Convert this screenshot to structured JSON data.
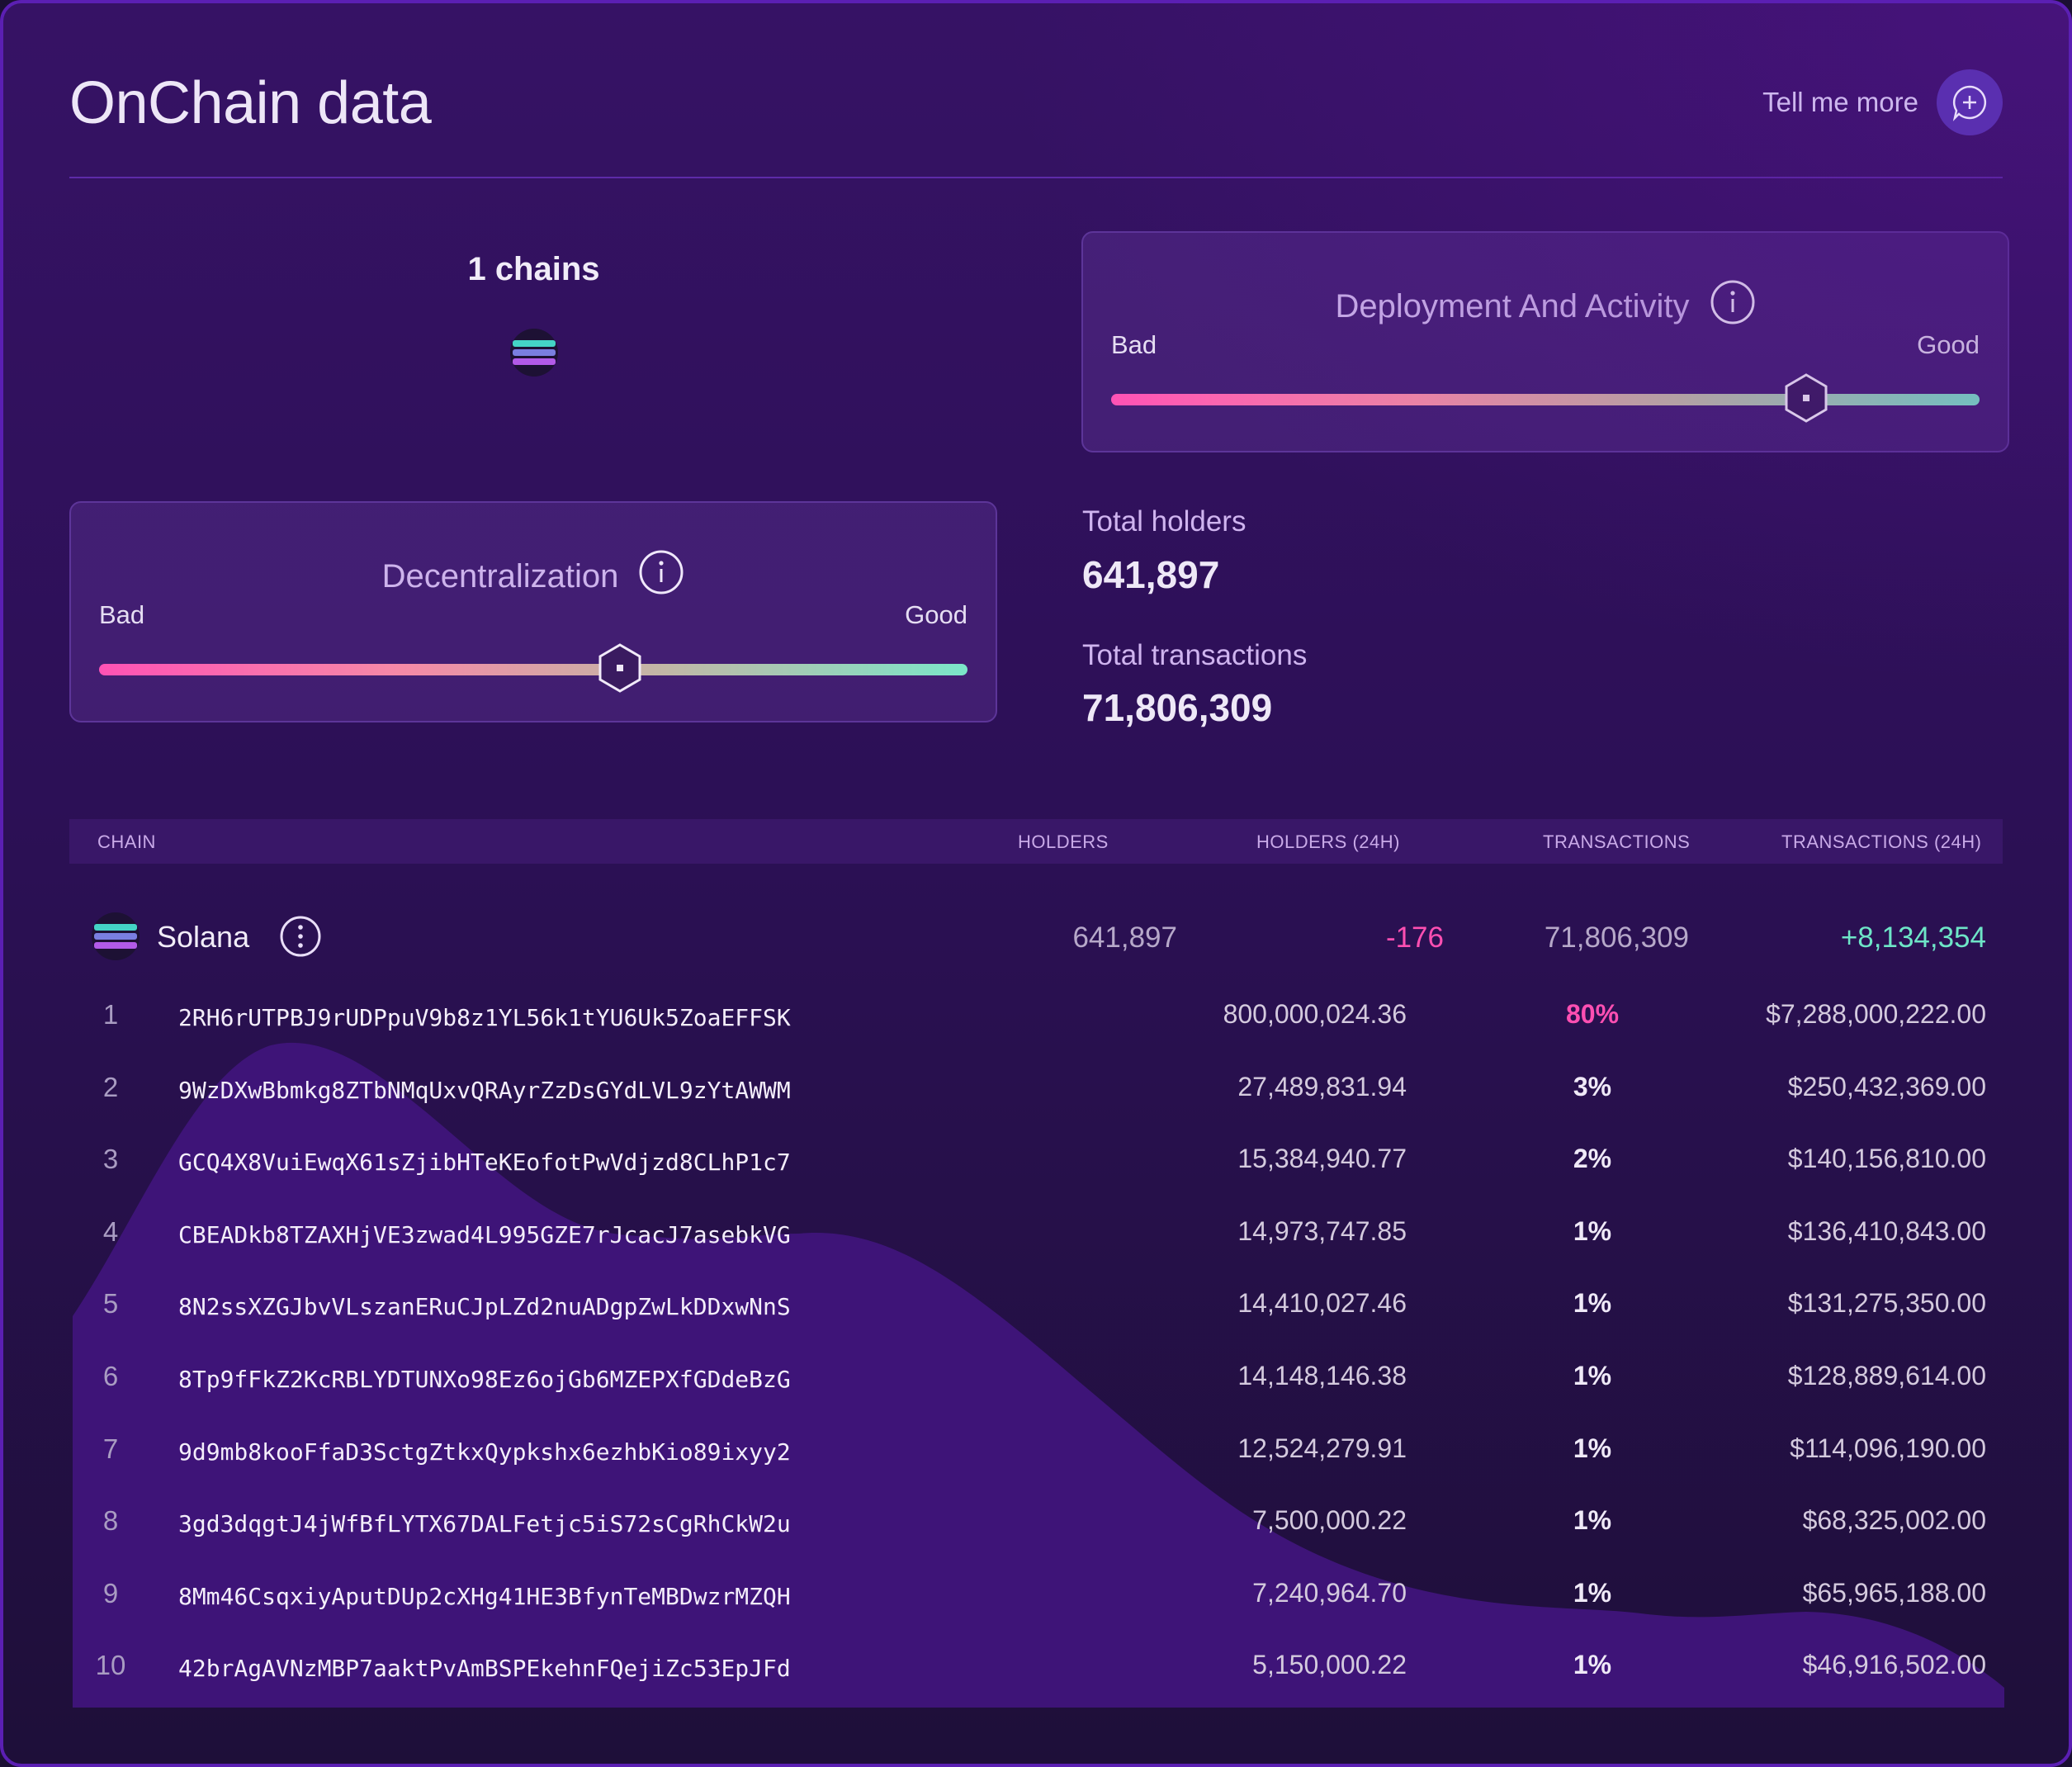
{
  "header": {
    "title": "OnChain data",
    "tell_more_label": "Tell me more",
    "tell_more_icon": "chat-plus-icon"
  },
  "chains": {
    "count_label": "1 chains",
    "logo": "solana-logo-icon"
  },
  "decentralization": {
    "title": "Decentralization",
    "left_label": "Bad",
    "right_label": "Good",
    "score_fraction": 0.6
  },
  "deployment": {
    "title": "Deployment And Activity",
    "left_label": "Bad",
    "right_label": "Good",
    "score_fraction": 0.8
  },
  "stats": {
    "holders_label": "Total holders",
    "holders_value": "641,897",
    "transactions_label": "Total transactions",
    "transactions_value": "71,806,309"
  },
  "table": {
    "headers": [
      "CHAIN",
      "HOLDERS",
      "HOLDERS (24H)",
      "TRANSACTIONS",
      "TRANSACTIONS (24H)"
    ],
    "chain_row": {
      "name": "Solana",
      "holders": "641,897",
      "holders_24h": "-176",
      "transactions": "71,806,309",
      "transactions_24h": "+8,134,354"
    },
    "rows": [
      {
        "idx": "1",
        "address": "2RH6rUTPBJ9rUDPpuV9b8z1YL56k1tYU6Uk5ZoaEFFSK",
        "amount": "800,000,024.36",
        "pct": "80%",
        "usd": "$7,288,000,222.00"
      },
      {
        "idx": "2",
        "address": "9WzDXwBbmkg8ZTbNMqUxvQRAyrZzDsGYdLVL9zYtAWWM",
        "amount": "27,489,831.94",
        "pct": "3%",
        "usd": "$250,432,369.00"
      },
      {
        "idx": "3",
        "address": "GCQ4X8VuiEwqX61sZjibHTeKEofotPwVdjzd8CLhP1c7",
        "amount": "15,384,940.77",
        "pct": "2%",
        "usd": "$140,156,810.00"
      },
      {
        "idx": "4",
        "address": "CBEADkb8TZAXHjVE3zwad4L995GZE7rJcacJ7asebkVG",
        "amount": "14,973,747.85",
        "pct": "1%",
        "usd": "$136,410,843.00"
      },
      {
        "idx": "5",
        "address": "8N2ssXZGJbvVLszanERuCJpLZd2nuADgpZwLkDDxwNnS",
        "amount": "14,410,027.46",
        "pct": "1%",
        "usd": "$131,275,350.00"
      },
      {
        "idx": "6",
        "address": "8Tp9fFkZ2KcRBLYDTUNXo98Ez6ojGb6MZEPXfGDdeBzG",
        "amount": "14,148,146.38",
        "pct": "1%",
        "usd": "$128,889,614.00"
      },
      {
        "idx": "7",
        "address": "9d9mb8kooFfaD3SctgZtkxQypkshx6ezhbKio89ixyy2",
        "amount": "12,524,279.91",
        "pct": "1%",
        "usd": "$114,096,190.00"
      },
      {
        "idx": "8",
        "address": "3gd3dqgtJ4jWfBfLYTX67DALFetjc5iS72sCgRhCkW2u",
        "amount": "7,500,000.22",
        "pct": "1%",
        "usd": "$68,325,002.00"
      },
      {
        "idx": "9",
        "address": "8Mm46CsqxiyAputDUp2cXHg41HE3BfynTeMBDwzrMZQH",
        "amount": "7,240,964.70",
        "pct": "1%",
        "usd": "$65,965,188.00"
      },
      {
        "idx": "10",
        "address": "42brAgAVNzMBP7aaktPvAmBSPEkehnFQejiZc53EpJFd",
        "amount": "5,150,000.22",
        "pct": "1%",
        "usd": "$46,916,502.00"
      }
    ]
  },
  "colors": {
    "accent": "#5a2fb0",
    "negative": "#ff4fb2",
    "positive": "#6ee5c7",
    "background": "#2c1056"
  }
}
